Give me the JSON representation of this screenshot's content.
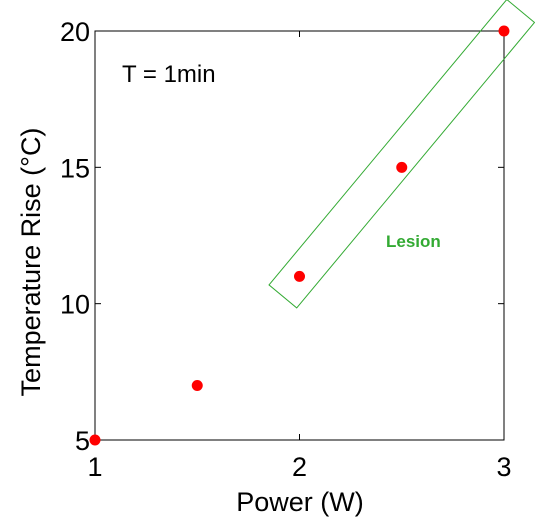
{
  "chart_data": {
    "type": "scatter",
    "xlabel": "Power (W)",
    "ylabel": "Temperature Rise (°C)",
    "xlim": [
      1,
      3
    ],
    "ylim": [
      5,
      20
    ],
    "x_ticks": [
      1,
      2,
      3
    ],
    "y_ticks": [
      5,
      10,
      15,
      20
    ],
    "x_tick_labels": [
      "1",
      "2",
      "3"
    ],
    "y_tick_labels": [
      "5",
      "10",
      "15",
      "20"
    ],
    "grid": false,
    "legend": "none",
    "series": [
      {
        "color": "#ff0000",
        "points": [
          {
            "x": 1.0,
            "y": 5.0
          },
          {
            "x": 1.5,
            "y": 7.0
          },
          {
            "x": 2.0,
            "y": 11.0
          },
          {
            "x": 2.5,
            "y": 15.0
          },
          {
            "x": 3.0,
            "y": 20.0
          }
        ]
      }
    ],
    "annotations": [
      {
        "text": "T = 1min",
        "color": "#000000"
      },
      {
        "text": "Lesion",
        "color": "#33aa33",
        "box_color": "#33aa33",
        "box_spans_x": [
          2.0,
          3.0
        ],
        "box_spans_y": [
          11.0,
          20.0
        ]
      }
    ]
  }
}
